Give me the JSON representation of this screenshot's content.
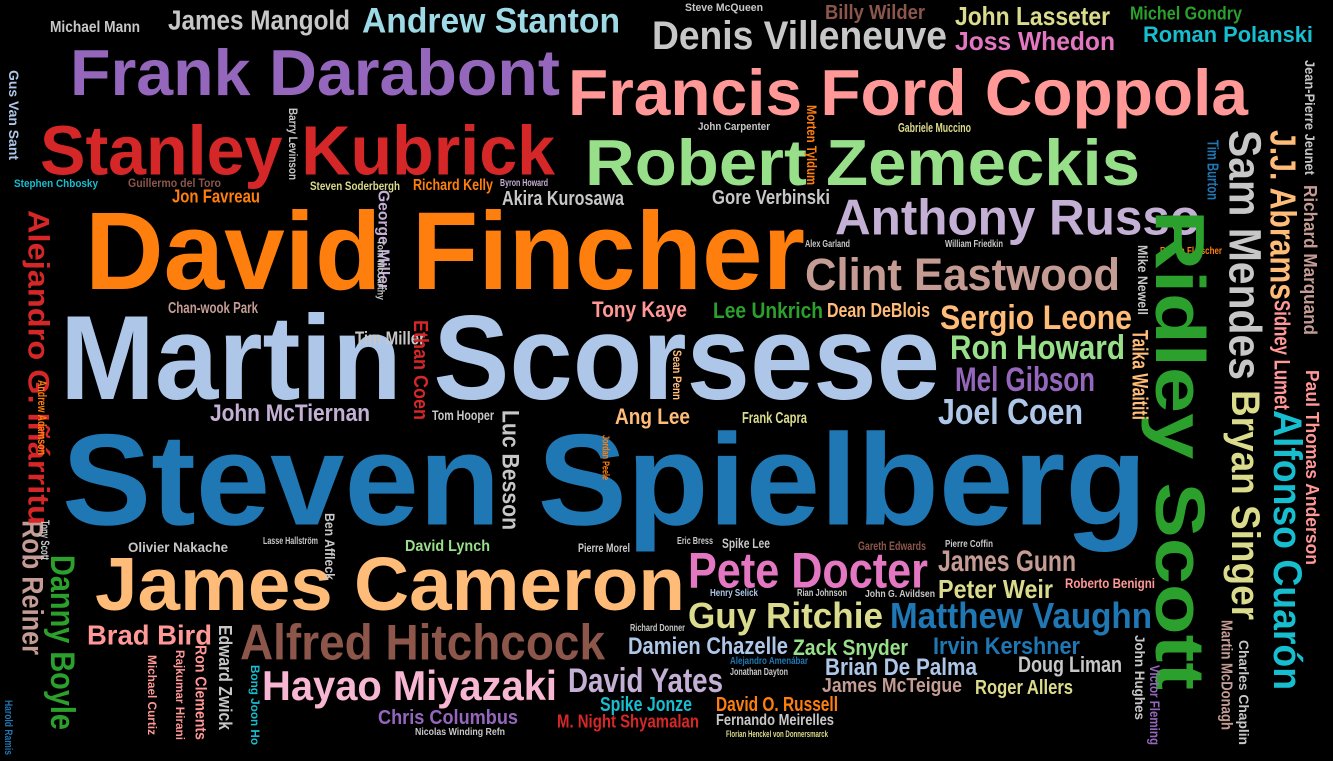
{
  "words": [
    "Steven Spielberg",
    "Martin Scorsese",
    "David Fincher",
    "James Cameron",
    "Stanley Kubrick",
    "Frank Darabont",
    "Francis Ford Coppola",
    "Robert Zemeckis",
    "Anthony Russo",
    "Clint Eastwood",
    "Denis Villeneuve",
    "Andrew Stanton",
    "James Mangold",
    "Michael Mann",
    "Billy Wilder",
    "Steve McQueen",
    "John Lasseter",
    "Joss Whedon",
    "Michel Gondry",
    "Roman Polanski",
    "Pete Docter",
    "Guy Ritchie",
    "Matthew Vaughn",
    "Alfred Hitchcock",
    "Hayao Miyazaki",
    "David Yates",
    "Brad Bird",
    "Chris Columbus",
    "M. Night Shyamalan",
    "Spike Jonze",
    "David O. Russell",
    "Fernando Meirelles",
    "Damien Chazelle",
    "Zack Snyder",
    "Irvin Kershner",
    "Brian De Palma",
    "Doug Liman",
    "James McTeigue",
    "Roger Allers",
    "James Gunn",
    "Peter Weir",
    "Roberto Benigni",
    "Joel Coen",
    "Mel Gibson",
    "Ron Howard",
    "Sergio Leone",
    "Dean DeBlois",
    "Lee Unkrich",
    "Tony Kaye",
    "Akira Kurosawa",
    "Gore Verbinski",
    "Jon Favreau",
    "Richard Kelly",
    "Steven Soderbergh",
    "Guillermo del Toro",
    "Stephen Chbosky",
    "Chan-wook Park",
    "Tim Miller",
    "John McTiernan",
    "Tom Hooper",
    "Ang Lee",
    "Frank Capra",
    "Olivier Nakache",
    "David Lynch",
    "Pierre Morel",
    "Spike Lee",
    "Eric Bress",
    "Gareth Edwards",
    "Pierre Coffin",
    "Lasse Hallström",
    "John G. Avildsen",
    "Henry Selick",
    "Rian Johnson",
    "Richard Donner",
    "Alejandro Amenábar",
    "Jonathan Dayton",
    "John Carpenter",
    "Gabriele Muccino",
    "Byron Howard",
    "Alex Garland",
    "William Friedkin",
    "Ruben Fleischer",
    "Nicolas Winding Refn",
    "Florian Henckel von Donnersmarck",
    "Ridley Scott",
    "Sam Mendes",
    "Bryan Singer",
    "Alfonso Cuarón",
    "J.J. Abrams",
    "Sidney Lumet",
    "Richard Marquand",
    "Paul Thomas Anderson",
    "Jean-Pierre Jeunet",
    "Tim Burton",
    "Taika Waititi",
    "Martin McDonagh",
    "Charles Chaplin",
    "Victor Fleming",
    "John Hughes",
    "Danny Boyle",
    "Rob Reiner",
    "Alejandro G. Iñárritu",
    "Gus Van Sant",
    "Andrew Adamson",
    "Harold Ramis",
    "Tony Scott",
    "Ethan Coen",
    "Luc Besson",
    "Ben Affleck",
    "George Miller",
    "Edward Zwick",
    "Ron Clements",
    "Rajkumar Hirani",
    "Bong Joon Ho",
    "Michael Curtiz",
    "Barry Levinson",
    "Morten Tyldum",
    "Mike Newell",
    "Sean Penn",
    "Jordan Peele",
    "Tom McCarthy"
  ]
}
